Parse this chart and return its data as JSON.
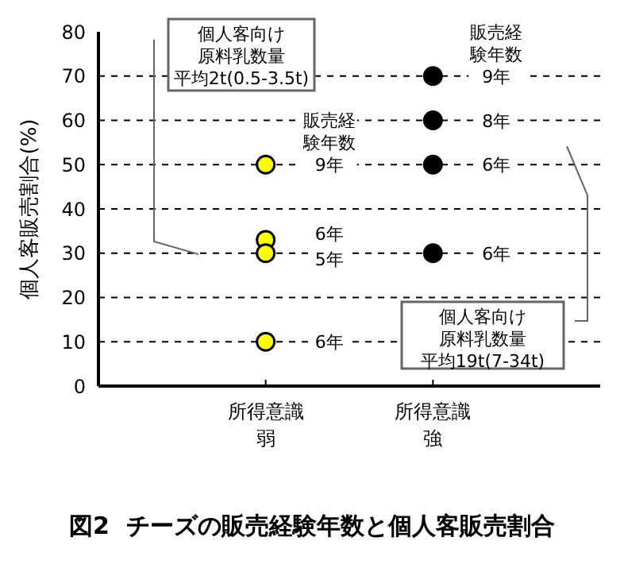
{
  "chart_data": {
    "type": "scatter",
    "title": "図2  チーズの販売経験年数と個人客販売割合",
    "ylabel": "個人客販売割合(%)",
    "categories": [
      "所得意識弱",
      "所得意識強"
    ],
    "series": [
      {
        "color": "#ffff00",
        "x": [
          "所得意識弱",
          "所得意識弱",
          "所得意識弱",
          "所得意識弱"
        ],
        "values": [
          50,
          33,
          30,
          10
        ]
      },
      {
        "color": "#000000",
        "x": [
          "所得意識強",
          "所得意識強",
          "所得意識強",
          "所得意識強"
        ],
        "values": [
          70,
          60,
          50,
          30
        ]
      }
    ],
    "ylim": [
      0,
      80
    ],
    "yticks": [
      0,
      10,
      20,
      30,
      40,
      50,
      60,
      70,
      80
    ],
    "grid": "y",
    "marker": "circle",
    "legend": false,
    "annotations": [
      {
        "text": "販売経験年数9年",
        "x": "所得意識弱",
        "y": 50
      },
      {
        "text": "6年",
        "x": "所得意識弱",
        "y": 33
      },
      {
        "text": "5年",
        "x": "所得意識弱",
        "y": 30
      },
      {
        "text": "6年",
        "x": "所得意識弱",
        "y": 10
      },
      {
        "text": "販売経験年数9年",
        "x": "所得意識強",
        "y": 70
      },
      {
        "text": "8年",
        "x": "所得意識強",
        "y": 60
      },
      {
        "text": "6年",
        "x": "所得意識強",
        "y": 50
      },
      {
        "text": "6年",
        "x": "所得意識強",
        "y": 30
      },
      "個人客向け原料乳数量平均2t(0.5-3.5t)",
      "個人客向け原料乳数量平均19t(7-34t)"
    ]
  }
}
